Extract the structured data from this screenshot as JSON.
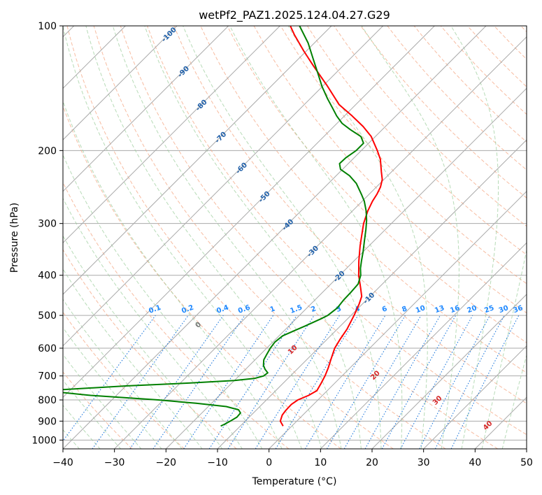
{
  "chart_data": {
    "type": "line",
    "title": "wetPf2_PAZ1.2025.124.04.27.G29",
    "xlabel": "Temperature (°C)",
    "ylabel": "Pressure (hPa)",
    "xlim": [
      -40,
      50
    ],
    "ylim": [
      1050,
      100
    ],
    "y_scale": "log",
    "grid": true,
    "x_ticks": [
      -40,
      -30,
      -20,
      -10,
      0,
      10,
      20,
      30,
      40,
      50
    ],
    "y_ticks": [
      100,
      200,
      300,
      400,
      500,
      600,
      700,
      800,
      900,
      1000
    ],
    "series": [
      {
        "role": "temperature",
        "color": "#ff0000",
        "points": [
          [
            925,
            -1.7
          ],
          [
            900,
            -3.2
          ],
          [
            870,
            -4.0
          ],
          [
            850,
            -4.2
          ],
          [
            820,
            -4.3
          ],
          [
            800,
            -3.9
          ],
          [
            780,
            -2.7
          ],
          [
            760,
            -2.0
          ],
          [
            730,
            -2.6
          ],
          [
            700,
            -3.3
          ],
          [
            670,
            -4.2
          ],
          [
            640,
            -5.3
          ],
          [
            600,
            -6.8
          ],
          [
            570,
            -7.5
          ],
          [
            540,
            -8.1
          ],
          [
            500,
            -9.4
          ],
          [
            470,
            -10.6
          ],
          [
            450,
            -11.6
          ],
          [
            430,
            -13.4
          ],
          [
            400,
            -16.3
          ],
          [
            370,
            -19.0
          ],
          [
            340,
            -21.7
          ],
          [
            320,
            -23.5
          ],
          [
            300,
            -25.4
          ],
          [
            280,
            -27.0
          ],
          [
            265,
            -28.0
          ],
          [
            255,
            -28.5
          ],
          [
            245,
            -29.2
          ],
          [
            235,
            -30.3
          ],
          [
            225,
            -32.0
          ],
          [
            210,
            -34.6
          ],
          [
            200,
            -36.9
          ],
          [
            185,
            -40.8
          ],
          [
            175,
            -44.3
          ],
          [
            165,
            -48.5
          ],
          [
            155,
            -53.2
          ],
          [
            140,
            -59.0
          ],
          [
            125,
            -65.7
          ],
          [
            115,
            -70.5
          ],
          [
            105,
            -75.5
          ],
          [
            100,
            -78.0
          ]
        ]
      },
      {
        "role": "dewpoint",
        "color": "#008000",
        "points": [
          [
            925,
            -13.8
          ],
          [
            915,
            -13.4
          ],
          [
            900,
            -12.9
          ],
          [
            880,
            -12.4
          ],
          [
            860,
            -12.5
          ],
          [
            845,
            -13.5
          ],
          [
            830,
            -16.5
          ],
          [
            815,
            -23.0
          ],
          [
            800,
            -31.0
          ],
          [
            790,
            -38.0
          ],
          [
            780,
            -45.0
          ],
          [
            760,
            -55.0
          ],
          [
            748,
            -46.0
          ],
          [
            740,
            -40.0
          ],
          [
            728,
            -28.0
          ],
          [
            718,
            -20.0
          ],
          [
            710,
            -16.5
          ],
          [
            700,
            -15.2
          ],
          [
            688,
            -15.0
          ],
          [
            675,
            -16.2
          ],
          [
            660,
            -17.3
          ],
          [
            640,
            -18.3
          ],
          [
            620,
            -18.8
          ],
          [
            600,
            -19.3
          ],
          [
            580,
            -19.6
          ],
          [
            560,
            -19.3
          ],
          [
            545,
            -18.1
          ],
          [
            530,
            -16.8
          ],
          [
            510,
            -15.2
          ],
          [
            500,
            -14.5
          ],
          [
            480,
            -14.1
          ],
          [
            460,
            -14.4
          ],
          [
            440,
            -14.5
          ],
          [
            420,
            -14.7
          ],
          [
            400,
            -15.9
          ],
          [
            385,
            -17.3
          ],
          [
            370,
            -18.5
          ],
          [
            350,
            -20.1
          ],
          [
            330,
            -21.9
          ],
          [
            310,
            -23.8
          ],
          [
            295,
            -25.4
          ],
          [
            280,
            -27.3
          ],
          [
            265,
            -29.6
          ],
          [
            255,
            -31.5
          ],
          [
            240,
            -34.6
          ],
          [
            230,
            -37.4
          ],
          [
            222,
            -40.4
          ],
          [
            215,
            -41.7
          ],
          [
            208,
            -41.6
          ],
          [
            200,
            -41.0
          ],
          [
            192,
            -41.0
          ],
          [
            185,
            -42.8
          ],
          [
            178,
            -46.2
          ],
          [
            172,
            -49.0
          ],
          [
            165,
            -51.5
          ],
          [
            158,
            -53.8
          ],
          [
            150,
            -56.6
          ],
          [
            140,
            -60.1
          ],
          [
            130,
            -63.5
          ],
          [
            120,
            -67.2
          ],
          [
            110,
            -71.2
          ],
          [
            100,
            -76.2
          ]
        ]
      }
    ],
    "isotherm_labels": [
      -100,
      -90,
      -80,
      -70,
      -60,
      -50,
      -40,
      -30,
      -20,
      -10
    ],
    "mixing_ratio_labels": [
      "0.1",
      "0.2",
      "0.4",
      "0.6",
      "1",
      "1.5",
      "2",
      "3",
      "4",
      "6",
      "8",
      "10",
      "13",
      "16",
      "20",
      "25",
      "30",
      "36"
    ],
    "moist_adiabat_labels": [
      "0",
      "10",
      "20",
      "30",
      "40"
    ],
    "colors": {
      "isotherm": "#aaaaaa",
      "isotherm_label": "#1f5fa8",
      "dry_adiabat": "#f4a582",
      "moist_adiabat": "#99cc99",
      "mixing_ratio": "#1e78dc",
      "mixing_ratio_label": "#1e88ff",
      "moist_label": "#d62728"
    }
  }
}
